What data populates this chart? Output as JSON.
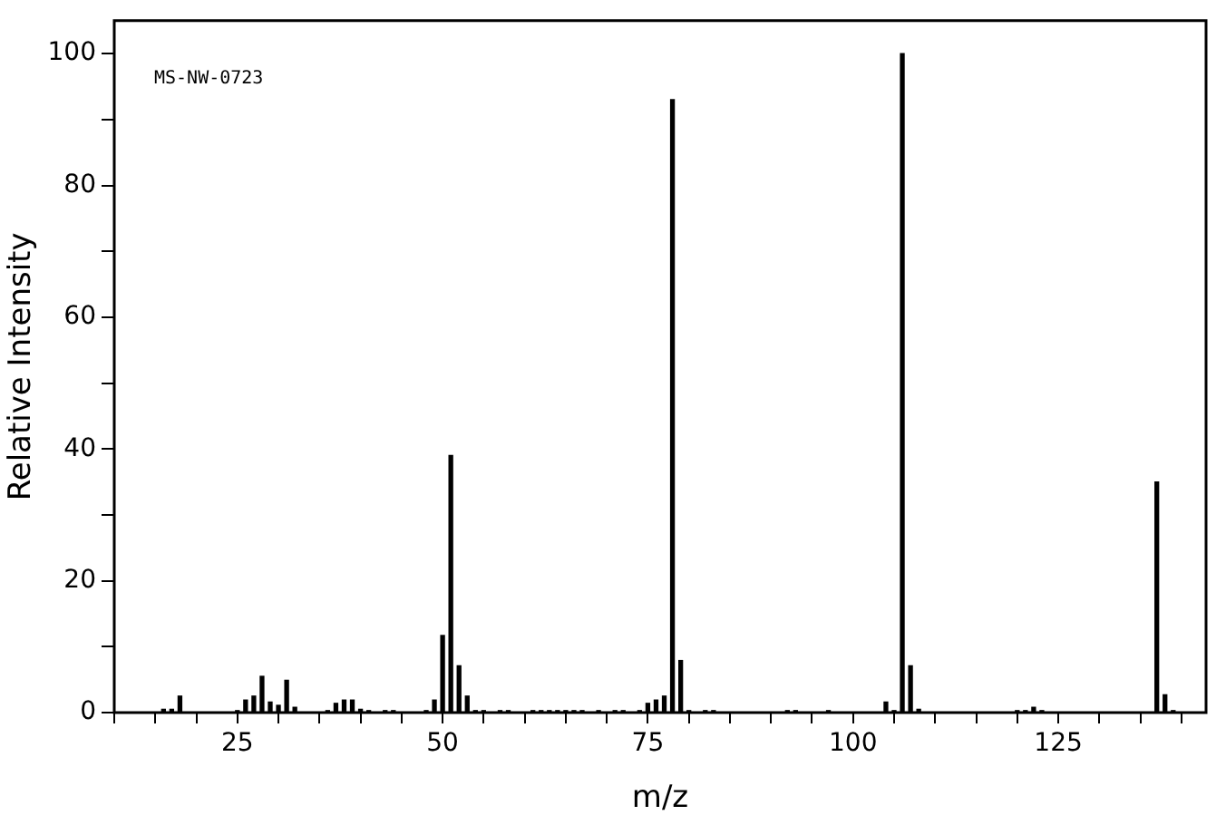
{
  "chart_data": {
    "type": "bar",
    "xlabel": "m/z",
    "ylabel": "Relative Intensity",
    "annotations": [
      "MS-NW-0723"
    ],
    "x": [
      16,
      17,
      18,
      25,
      26,
      27,
      28,
      29,
      30,
      31,
      32,
      36,
      37,
      38,
      39,
      40,
      41,
      43,
      44,
      48,
      49,
      50,
      51,
      52,
      53,
      54,
      55,
      57,
      58,
      61,
      62,
      63,
      64,
      65,
      66,
      67,
      69,
      71,
      72,
      74,
      75,
      76,
      77,
      78,
      79,
      80,
      82,
      83,
      92,
      93,
      97,
      104,
      105,
      106,
      107,
      108,
      120,
      121,
      122,
      123,
      137,
      138,
      139
    ],
    "values": [
      0.5,
      0.5,
      2.5,
      0.3,
      1.9,
      2.5,
      5.5,
      1.6,
      1.1,
      4.9,
      0.8,
      0.3,
      1.4,
      1.9,
      1.9,
      0.5,
      0.3,
      0.3,
      0.3,
      0.3,
      1.9,
      11.7,
      39,
      7.1,
      2.5,
      0.3,
      0.3,
      0.3,
      0.3,
      0.3,
      0.3,
      0.3,
      0.3,
      0.3,
      0.3,
      0.3,
      0.3,
      0.3,
      0.3,
      0.3,
      1.4,
      1.9,
      2.5,
      93,
      7.9,
      0.3,
      0.3,
      0.3,
      0.3,
      0.3,
      0.3,
      1.6,
      0.3,
      100,
      7.1,
      0.5,
      0.3,
      0.3,
      0.8,
      0.3,
      35,
      2.7,
      0.3
    ],
    "color": "#000000",
    "xlim": [
      10,
      143
    ],
    "ylim": [
      0,
      105
    ],
    "xticks": [
      {
        "value": 10,
        "label": null
      },
      {
        "value": 15,
        "label": null
      },
      {
        "value": 20,
        "label": null
      },
      25,
      {
        "value": 30,
        "label": null
      },
      {
        "value": 35,
        "label": null
      },
      {
        "value": 40,
        "label": null
      },
      {
        "value": 45,
        "label": null
      },
      50,
      {
        "value": 55,
        "label": null
      },
      {
        "value": 60,
        "label": null
      },
      {
        "value": 65,
        "label": null
      },
      {
        "value": 70,
        "label": null
      },
      75,
      {
        "value": 80,
        "label": null
      },
      {
        "value": 85,
        "label": null
      },
      {
        "value": 90,
        "label": null
      },
      {
        "value": 95,
        "label": null
      },
      100,
      {
        "value": 105,
        "label": null
      },
      {
        "value": 110,
        "label": null
      },
      {
        "value": 115,
        "label": null
      },
      {
        "value": 120,
        "label": null
      },
      125,
      {
        "value": 130,
        "label": null
      },
      {
        "value": 135,
        "label": null
      },
      {
        "value": 140,
        "label": null
      }
    ],
    "yticks": [
      0,
      {
        "value": 10,
        "label": null
      },
      20,
      {
        "value": 30,
        "label": null
      },
      40,
      {
        "value": 50,
        "label": null
      },
      60,
      {
        "value": 70,
        "label": null
      },
      80,
      {
        "value": 90,
        "label": null
      },
      100
    ],
    "grid": false,
    "legend": false
  }
}
